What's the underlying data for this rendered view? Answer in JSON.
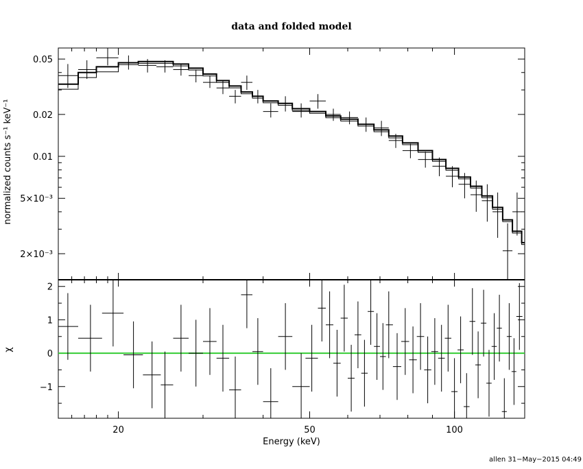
{
  "chart_data": [
    {
      "type": "line",
      "panel": "top",
      "title": "data and folded model",
      "ylabel": "normalized counts s⁻¹ keV⁻¹",
      "xscale": "log",
      "yscale": "log",
      "xlim": [
        15,
        140
      ],
      "ylim": [
        0.0013,
        0.06
      ],
      "ytick_labels": [
        {
          "value": 0.05,
          "label": "0.05"
        },
        {
          "value": 0.02,
          "label": "0.02"
        },
        {
          "value": 0.01,
          "label": "0.01"
        },
        {
          "value": 0.005,
          "label": "5×10⁻³"
        },
        {
          "value": 0.002,
          "label": "2×10⁻³"
        }
      ],
      "model": {
        "edges": [
          15,
          16.5,
          18,
          20,
          22,
          24,
          26,
          28,
          30,
          32,
          34,
          36,
          38,
          40,
          43,
          46,
          50,
          54,
          58,
          63,
          68,
          73,
          78,
          84,
          90,
          96,
          102,
          108,
          114,
          120,
          126,
          132,
          138,
          140
        ],
        "values": [
          0.033,
          0.04,
          0.044,
          0.047,
          0.048,
          0.048,
          0.046,
          0.043,
          0.039,
          0.035,
          0.032,
          0.029,
          0.027,
          0.025,
          0.024,
          0.022,
          0.021,
          0.0195,
          0.0185,
          0.017,
          0.0155,
          0.014,
          0.0125,
          0.011,
          0.0095,
          0.0082,
          0.0071,
          0.0061,
          0.0052,
          0.0043,
          0.0035,
          0.0029,
          0.0024
        ]
      },
      "points": [
        {
          "x": 15.7,
          "xlo": 15,
          "xhi": 16.5,
          "y": 0.038,
          "ylo": 0.031,
          "yhi": 0.046
        },
        {
          "x": 17.2,
          "xlo": 16.5,
          "xhi": 18,
          "y": 0.042,
          "ylo": 0.036,
          "yhi": 0.049
        },
        {
          "x": 19,
          "xlo": 18,
          "xhi": 20,
          "y": 0.051,
          "ylo": 0.045,
          "yhi": 0.058
        },
        {
          "x": 21,
          "xlo": 20,
          "xhi": 22,
          "y": 0.047,
          "ylo": 0.042,
          "yhi": 0.053
        },
        {
          "x": 23,
          "xlo": 22,
          "xhi": 24,
          "y": 0.045,
          "ylo": 0.04,
          "yhi": 0.05
        },
        {
          "x": 25,
          "xlo": 24,
          "xhi": 26,
          "y": 0.044,
          "ylo": 0.04,
          "yhi": 0.049
        },
        {
          "x": 27,
          "xlo": 26,
          "xhi": 28,
          "y": 0.042,
          "ylo": 0.038,
          "yhi": 0.046
        },
        {
          "x": 29,
          "xlo": 28,
          "xhi": 30,
          "y": 0.038,
          "ylo": 0.034,
          "yhi": 0.042
        },
        {
          "x": 31,
          "xlo": 30,
          "xhi": 32,
          "y": 0.034,
          "ylo": 0.031,
          "yhi": 0.038
        },
        {
          "x": 33,
          "xlo": 32,
          "xhi": 34,
          "y": 0.031,
          "ylo": 0.028,
          "yhi": 0.035
        },
        {
          "x": 35,
          "xlo": 34,
          "xhi": 36,
          "y": 0.027,
          "ylo": 0.024,
          "yhi": 0.03
        },
        {
          "x": 37,
          "xlo": 36,
          "xhi": 38,
          "y": 0.034,
          "ylo": 0.03,
          "yhi": 0.038
        },
        {
          "x": 39,
          "xlo": 38,
          "xhi": 40,
          "y": 0.027,
          "ylo": 0.024,
          "yhi": 0.03
        },
        {
          "x": 41.5,
          "xlo": 40,
          "xhi": 43,
          "y": 0.021,
          "ylo": 0.019,
          "yhi": 0.024
        },
        {
          "x": 44.5,
          "xlo": 43,
          "xhi": 46,
          "y": 0.024,
          "ylo": 0.021,
          "yhi": 0.027
        },
        {
          "x": 48,
          "xlo": 46,
          "xhi": 50,
          "y": 0.021,
          "ylo": 0.019,
          "yhi": 0.024
        },
        {
          "x": 52,
          "xlo": 50,
          "xhi": 54,
          "y": 0.025,
          "ylo": 0.022,
          "yhi": 0.028
        },
        {
          "x": 56,
          "xlo": 54,
          "xhi": 58,
          "y": 0.02,
          "ylo": 0.018,
          "yhi": 0.022
        },
        {
          "x": 60.5,
          "xlo": 58,
          "xhi": 63,
          "y": 0.019,
          "ylo": 0.017,
          "yhi": 0.021
        },
        {
          "x": 65.5,
          "xlo": 63,
          "xhi": 68,
          "y": 0.017,
          "ylo": 0.015,
          "yhi": 0.019
        },
        {
          "x": 70.5,
          "xlo": 68,
          "xhi": 73,
          "y": 0.016,
          "ylo": 0.014,
          "yhi": 0.018
        },
        {
          "x": 75.5,
          "xlo": 73,
          "xhi": 78,
          "y": 0.013,
          "ylo": 0.0115,
          "yhi": 0.0145
        },
        {
          "x": 81,
          "xlo": 78,
          "xhi": 84,
          "y": 0.011,
          "ylo": 0.0097,
          "yhi": 0.0123
        },
        {
          "x": 87,
          "xlo": 84,
          "xhi": 90,
          "y": 0.0095,
          "ylo": 0.0083,
          "yhi": 0.0108
        },
        {
          "x": 93,
          "xlo": 90,
          "xhi": 96,
          "y": 0.0085,
          "ylo": 0.0072,
          "yhi": 0.0098
        },
        {
          "x": 99,
          "xlo": 96,
          "xhi": 102,
          "y": 0.0072,
          "ylo": 0.006,
          "yhi": 0.0085
        },
        {
          "x": 105,
          "xlo": 102,
          "xhi": 108,
          "y": 0.0063,
          "ylo": 0.005,
          "yhi": 0.0076
        },
        {
          "x": 111,
          "xlo": 108,
          "xhi": 114,
          "y": 0.0053,
          "ylo": 0.004,
          "yhi": 0.0067
        },
        {
          "x": 117,
          "xlo": 114,
          "xhi": 120,
          "y": 0.0048,
          "ylo": 0.0034,
          "yhi": 0.0063
        },
        {
          "x": 123,
          "xlo": 120,
          "xhi": 126,
          "y": 0.004,
          "ylo": 0.0026,
          "yhi": 0.0055
        },
        {
          "x": 129,
          "xlo": 126,
          "xhi": 132,
          "y": 0.0021,
          "ylo": 0.0013,
          "yhi": 0.0033
        },
        {
          "x": 135,
          "xlo": 132,
          "xhi": 138,
          "y": 0.004,
          "ylo": 0.0027,
          "yhi": 0.0055
        }
      ]
    },
    {
      "type": "scatter",
      "panel": "bottom",
      "ylabel": "χ",
      "xlabel": "Energy (keV)",
      "xscale": "log",
      "xlim": [
        15,
        140
      ],
      "ylim": [
        -1.95,
        2.2
      ],
      "ytick_labels": [
        {
          "value": 2,
          "label": "2"
        },
        {
          "value": 1,
          "label": "1"
        },
        {
          "value": 0,
          "label": "0"
        },
        {
          "value": -1,
          "label": "−1"
        }
      ],
      "xtick_labels": [
        {
          "value": 20,
          "label": "20"
        },
        {
          "value": 50,
          "label": "50"
        },
        {
          "value": 100,
          "label": "100"
        }
      ],
      "zero_line_color": "#33cc33",
      "points": [
        {
          "x": 15.7,
          "xlo": 15,
          "xhi": 16.5,
          "y": 0.8
        },
        {
          "x": 17.5,
          "xlo": 16.5,
          "xhi": 18.5,
          "y": 0.45
        },
        {
          "x": 19.5,
          "xlo": 18.5,
          "xhi": 20.5,
          "y": 1.2
        },
        {
          "x": 21.5,
          "xlo": 20.5,
          "xhi": 22.5,
          "y": -0.05
        },
        {
          "x": 23.5,
          "xlo": 22.5,
          "xhi": 24.5,
          "y": -0.65
        },
        {
          "x": 25,
          "xlo": 24.5,
          "xhi": 26,
          "y": -0.95
        },
        {
          "x": 27,
          "xlo": 26,
          "xhi": 28,
          "y": 0.45
        },
        {
          "x": 29,
          "xlo": 28,
          "xhi": 30,
          "y": 0.0
        },
        {
          "x": 31,
          "xlo": 30,
          "xhi": 32,
          "y": 0.35
        },
        {
          "x": 33,
          "xlo": 32,
          "xhi": 34,
          "y": -0.15
        },
        {
          "x": 35,
          "xlo": 34,
          "xhi": 36,
          "y": -1.1
        },
        {
          "x": 37,
          "xlo": 36,
          "xhi": 38,
          "y": 1.75
        },
        {
          "x": 39,
          "xlo": 38,
          "xhi": 40,
          "y": 0.05
        },
        {
          "x": 41.5,
          "xlo": 40,
          "xhi": 43,
          "y": -1.45
        },
        {
          "x": 44.5,
          "xlo": 43,
          "xhi": 46,
          "y": 0.5
        },
        {
          "x": 48,
          "xlo": 46,
          "xhi": 50,
          "y": -1.0
        },
        {
          "x": 50.5,
          "xlo": 49,
          "xhi": 52,
          "y": -0.15
        },
        {
          "x": 53,
          "xlo": 52,
          "xhi": 54,
          "y": 1.35
        },
        {
          "x": 55,
          "xlo": 54,
          "xhi": 56,
          "y": 0.85
        },
        {
          "x": 57,
          "xlo": 56,
          "xhi": 58,
          "y": -0.3
        },
        {
          "x": 59,
          "xlo": 58,
          "xhi": 60,
          "y": 1.05
        },
        {
          "x": 61,
          "xlo": 60,
          "xhi": 62,
          "y": -0.75
        },
        {
          "x": 63,
          "xlo": 62,
          "xhi": 64,
          "y": 0.55
        },
        {
          "x": 65,
          "xlo": 64,
          "xhi": 66,
          "y": -0.6
        },
        {
          "x": 67,
          "xlo": 66,
          "xhi": 68,
          "y": 1.25
        },
        {
          "x": 69,
          "xlo": 68,
          "xhi": 70,
          "y": 0.2
        },
        {
          "x": 71,
          "xlo": 70,
          "xhi": 72,
          "y": -0.1
        },
        {
          "x": 73,
          "xlo": 72,
          "xhi": 74.5,
          "y": 0.85
        },
        {
          "x": 76,
          "xlo": 74.5,
          "xhi": 77.5,
          "y": -0.4
        },
        {
          "x": 79,
          "xlo": 77.5,
          "xhi": 80.5,
          "y": 0.35
        },
        {
          "x": 82,
          "xlo": 80.5,
          "xhi": 83.5,
          "y": -0.2
        },
        {
          "x": 85,
          "xlo": 83.5,
          "xhi": 86.5,
          "y": 0.5
        },
        {
          "x": 88,
          "xlo": 86.5,
          "xhi": 89.5,
          "y": -0.5
        },
        {
          "x": 91,
          "xlo": 89.5,
          "xhi": 92.5,
          "y": 0.05
        },
        {
          "x": 94,
          "xlo": 92.5,
          "xhi": 95.5,
          "y": -0.15
        },
        {
          "x": 97,
          "xlo": 95.5,
          "xhi": 98.5,
          "y": 0.45
        },
        {
          "x": 100,
          "xlo": 98.5,
          "xhi": 101.5,
          "y": -1.15
        },
        {
          "x": 103,
          "xlo": 101.5,
          "xhi": 104.5,
          "y": 0.1
        },
        {
          "x": 106,
          "xlo": 104.5,
          "xhi": 107.5,
          "y": -1.6
        },
        {
          "x": 109,
          "xlo": 107.5,
          "xhi": 110.5,
          "y": 0.95
        },
        {
          "x": 112,
          "xlo": 110.5,
          "xhi": 113.5,
          "y": -0.35
        },
        {
          "x": 115,
          "xlo": 113.5,
          "xhi": 116.5,
          "y": 0.9
        },
        {
          "x": 118,
          "xlo": 116.5,
          "xhi": 119.5,
          "y": -0.9
        },
        {
          "x": 121,
          "xlo": 119.5,
          "xhi": 122.5,
          "y": 0.2
        },
        {
          "x": 124,
          "xlo": 122.5,
          "xhi": 125.5,
          "y": 0.75
        },
        {
          "x": 127,
          "xlo": 125.5,
          "xhi": 128.5,
          "y": -1.75
        },
        {
          "x": 130,
          "xlo": 128.5,
          "xhi": 131.5,
          "y": 0.5
        },
        {
          "x": 133,
          "xlo": 131.5,
          "xhi": 134.5,
          "y": -0.55
        },
        {
          "x": 136.5,
          "xlo": 134.5,
          "xhi": 138.5,
          "y": 1.1
        }
      ]
    }
  ],
  "footer": "allen 31−May−2015 04:49"
}
